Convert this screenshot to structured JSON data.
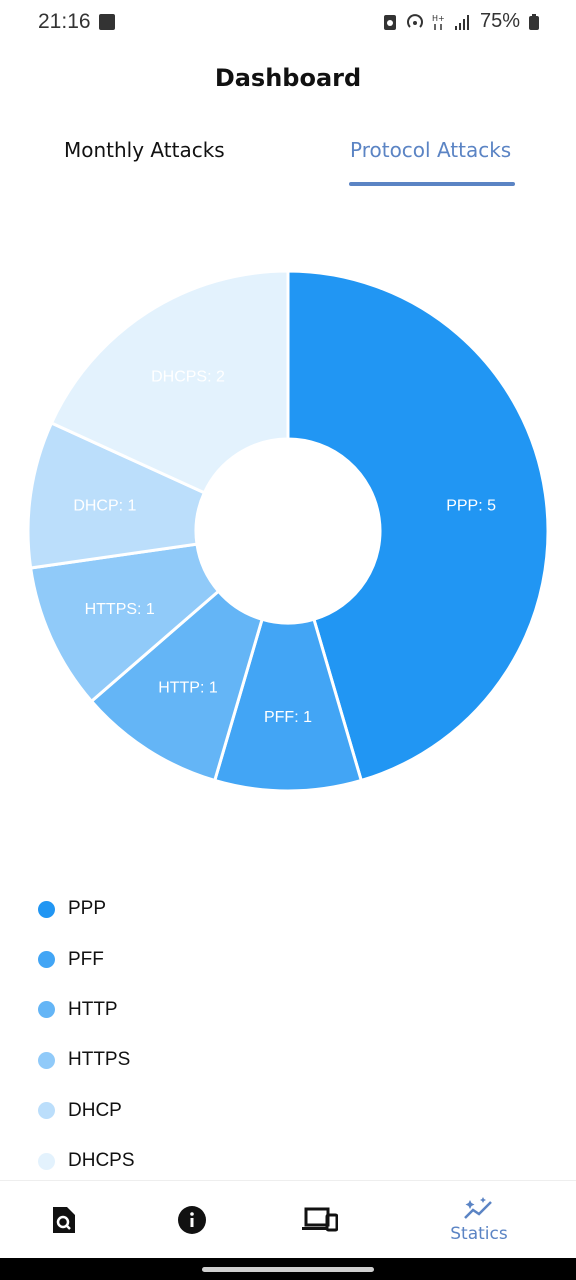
{
  "status_bar": {
    "time": "21:16",
    "battery": "75%"
  },
  "header": {
    "title": "Dashboard"
  },
  "tabs": [
    {
      "label": "Monthly Attacks",
      "active": false
    },
    {
      "label": "Protocol Attacks",
      "active": true
    }
  ],
  "chart_data": {
    "type": "pie",
    "donut": true,
    "categories": [
      "PPP",
      "PFF",
      "HTTP",
      "HTTPS",
      "DHCP",
      "DHCPS"
    ],
    "values": [
      5,
      1,
      1,
      1,
      1,
      2
    ],
    "data_labels": [
      "PPP: 5",
      "PFF: 1",
      "HTTP: 1",
      "HTTPS: 1",
      "DHCP: 1",
      "DHCPS: 2"
    ],
    "colors": [
      "#2196F3",
      "#42A5F5",
      "#64B5F6",
      "#90CAF9",
      "#BBDEFB",
      "#E3F2FD"
    ],
    "label_color": "#ffffff",
    "legend_placement": "bottom-left"
  },
  "legend": [
    {
      "label": "PPP",
      "color": "#2196F3"
    },
    {
      "label": "PFF",
      "color": "#42A5F5"
    },
    {
      "label": "HTTP",
      "color": "#64B5F6"
    },
    {
      "label": "HTTPS",
      "color": "#90CAF9"
    },
    {
      "label": "DHCP",
      "color": "#BBDEFB"
    },
    {
      "label": "DHCPS",
      "color": "#E3F2FD"
    }
  ],
  "bottom_nav": {
    "items": [
      {
        "icon": "document-search-icon",
        "label": ""
      },
      {
        "icon": "info-icon",
        "label": ""
      },
      {
        "icon": "devices-icon",
        "label": ""
      },
      {
        "icon": "sparkle-chart-icon",
        "label": "Statics"
      }
    ],
    "active_color": "#5b84c4"
  }
}
